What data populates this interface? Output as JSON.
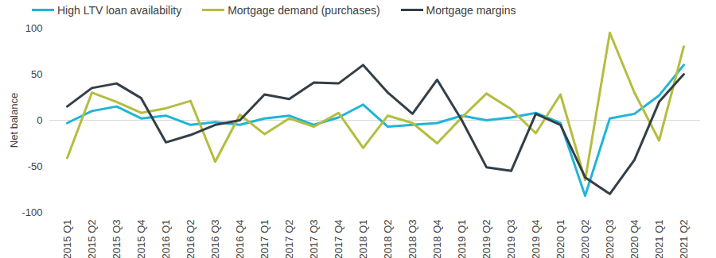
{
  "chart_data": {
    "type": "line",
    "y_label": "Net balance",
    "categories": [
      "2015 Q1",
      "2015 Q2",
      "2015 Q3",
      "2015 Q4",
      "2016 Q1",
      "2016 Q2",
      "2016 Q3",
      "2016 Q4",
      "2017 Q1",
      "2017 Q2",
      "2017 Q3",
      "2017 Q4",
      "2018 Q1",
      "2018 Q2",
      "2018 Q3",
      "2018 Q4",
      "2019 Q1",
      "2019 Q2",
      "2019 Q3",
      "2019 Q4",
      "2020 Q1",
      "2020 Q2",
      "2020 Q3",
      "2020 Q4",
      "2021 Q1",
      "2021 Q2"
    ],
    "series": [
      {
        "name": "High LTV loan availability",
        "color": "#1fb5d6",
        "values": [
          -3,
          10,
          15,
          2,
          5,
          -5,
          -2,
          -5,
          2,
          5,
          -5,
          3,
          17,
          -7,
          -5,
          -3,
          5,
          0,
          3,
          8,
          -3,
          -82,
          2,
          7,
          27,
          60
        ]
      },
      {
        "name": "Mortgage demand (purchases)",
        "color": "#b5bd3f",
        "values": [
          -41,
          30,
          20,
          8,
          13,
          21,
          -45,
          6,
          -15,
          2,
          -7,
          8,
          -30,
          5,
          -3,
          -25,
          3,
          29,
          12,
          -14,
          28,
          -65,
          95,
          30,
          -22,
          80
        ]
      },
      {
        "name": "Mortgage margins",
        "color": "#333f48",
        "values": [
          15,
          35,
          40,
          24,
          -24,
          -16,
          -5,
          0,
          28,
          23,
          41,
          40,
          60,
          30,
          7,
          44,
          0,
          -51,
          -55,
          7,
          -5,
          -62,
          -80,
          -43,
          20,
          50
        ]
      }
    ],
    "ylim": [
      -100,
      100
    ],
    "yticks": [
      -100,
      -50,
      0,
      50,
      100
    ],
    "legend": "top"
  }
}
